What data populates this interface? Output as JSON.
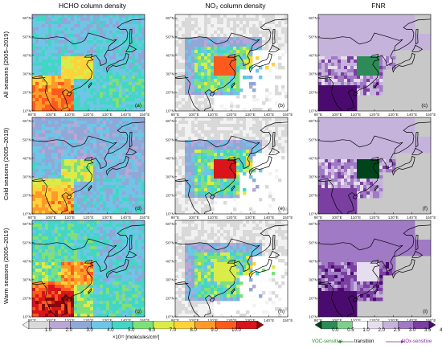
{
  "columns": [
    {
      "title": "HCHO column density",
      "variable": "hcho"
    },
    {
      "title": "NO₂ column density",
      "variable": "no2"
    },
    {
      "title": "FNR",
      "variable": "fnr"
    }
  ],
  "rows": [
    {
      "label": "All seasons (2005–2019)"
    },
    {
      "label": "Cold seasons (2005–2019)"
    },
    {
      "label": "Warm seasons (2005–2019)"
    }
  ],
  "panels": [
    [
      "(a)",
      "(b)",
      "(c)"
    ],
    [
      "(d)",
      "(e)",
      "(f)"
    ],
    [
      "(g)",
      "(h)",
      "(i)"
    ]
  ],
  "lat_ticks": [
    "60°N",
    "50°N",
    "40°N",
    "30°N",
    "20°N",
    "10°N"
  ],
  "lon_ticks": [
    "90°E",
    "100°E",
    "110°E",
    "120°E",
    "130°E",
    "140°E",
    "150°E"
  ],
  "colorbar_left": {
    "ticks": [
      "1.0",
      "2.0",
      "3.0",
      "4.0",
      "5.0",
      "6.0",
      "7.0",
      "8.0",
      "9.0",
      "10.0"
    ],
    "units": "×10¹⁵ [molecules/cm²]",
    "colors": [
      "#f2f2f2",
      "#d9d9d9",
      "#b9a7d6",
      "#8fa8d8",
      "#6ec6e6",
      "#43d6c4",
      "#7fe07a",
      "#d9ec4a",
      "#ffd23a",
      "#ff9a2a",
      "#ff5a1e",
      "#d9141a",
      "#8a0a0a"
    ]
  },
  "colorbar_right": {
    "ticks": [
      "0.0",
      "0.5",
      "1.0",
      "2.0",
      "2.5",
      "3.0",
      "3.5",
      "4.0"
    ],
    "regimes": {
      "voc": "VOC-sensitive",
      "transition": "transition",
      "nox": "NOx-sensitive"
    },
    "colors": [
      "#00441b",
      "#2e8b57",
      "#7fcf8c",
      "#ffffff",
      "#e6ddef",
      "#c6b3dc",
      "#a07ac4",
      "#7a3fa0",
      "#4b0b6e"
    ],
    "voc_color": "#2e8b2e",
    "nox_color": "#8a2aa0"
  }
}
